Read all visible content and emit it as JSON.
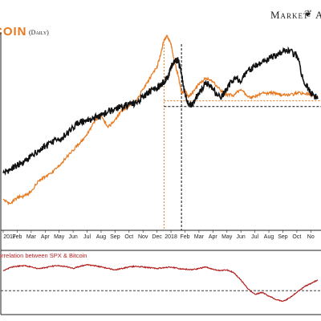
{
  "header": {
    "title_fragment": "COIN",
    "title_note": "(Daily)",
    "brand_text": "Market",
    "brand_icon": "dna-helix-icon",
    "brand_tail": "A"
  },
  "lower_panel": {
    "label": "orrelation between SPX & Bitcoin"
  },
  "colors": {
    "spx": "#111111",
    "bitcoin": "#e8781e",
    "correlation": "#b21f1f",
    "reference_line": "#222222"
  },
  "chart_data": [
    {
      "type": "line",
      "title": "",
      "x_tick_labels": [
        "2017",
        "Feb",
        "Mar",
        "Apr",
        "May",
        "Jun",
        "Jul",
        "Aug",
        "Sep",
        "Oct",
        "Nov",
        "Dec",
        "2018",
        "Feb",
        "Mar",
        "Apr",
        "May",
        "Jun",
        "Jul",
        "Aug",
        "Sep",
        "Oct",
        "No"
      ],
      "x": [
        0,
        0.5,
        1,
        1.5,
        2,
        2.5,
        3,
        3.5,
        4,
        4.5,
        5,
        5.5,
        6,
        6.5,
        7,
        7.5,
        8,
        8.5,
        9,
        9.5,
        10,
        10.5,
        11,
        11.25,
        11.5,
        11.75,
        12,
        12.25,
        12.5,
        12.75,
        13,
        13.25,
        13.5,
        14,
        14.5,
        15,
        15.5,
        16,
        16.5,
        17,
        17.5,
        18,
        18.5,
        19,
        19.5,
        20,
        20.5,
        21,
        21.5,
        22,
        22.5
      ],
      "series": [
        {
          "name": "",
          "color": "#111111",
          "values": [
            28,
            30,
            32,
            34,
            37,
            40,
            42,
            44,
            46,
            48,
            52,
            55,
            55,
            57,
            58,
            60,
            62,
            63,
            64,
            65,
            68,
            71,
            73,
            74,
            76,
            78,
            84,
            86,
            88,
            80,
            70,
            64,
            64,
            70,
            76,
            72,
            68,
            72,
            78,
            76,
            82,
            84,
            86,
            88,
            90,
            92,
            92,
            90,
            76,
            70,
            67
          ]
        },
        {
          "name": "",
          "color": "#e8781e",
          "values": [
            14,
            12,
            15,
            16,
            18,
            24,
            26,
            28,
            32,
            36,
            40,
            44,
            48,
            55,
            58,
            52,
            56,
            61,
            63,
            66,
            72,
            78,
            84,
            90,
            98,
            100,
            96,
            86,
            80,
            70,
            72,
            68,
            70,
            75,
            78,
            76,
            72,
            69,
            69,
            72,
            68,
            68,
            70,
            70,
            70,
            69,
            69,
            70,
            70,
            69,
            68
          ]
        }
      ],
      "reference_lines": [
        {
          "orientation": "vertical",
          "x": 11.5,
          "color": "#e8781e",
          "style": "dotted"
        },
        {
          "orientation": "vertical",
          "x": 12.75,
          "color": "#111111",
          "style": "dashed"
        },
        {
          "orientation": "horizontal",
          "y": 66,
          "color": "#e8781e",
          "style": "dotted"
        },
        {
          "orientation": "horizontal",
          "y": 63,
          "color": "#111111",
          "style": "dashed"
        }
      ],
      "ylim": [
        0,
        100
      ],
      "grid": false
    },
    {
      "type": "line",
      "title": "orrelation between SPX & Bitcoin",
      "x": [
        0,
        0.5,
        1,
        1.5,
        2,
        2.5,
        3,
        3.5,
        4,
        4.5,
        5,
        5.5,
        6,
        6.5,
        7,
        7.5,
        8,
        8.5,
        9,
        9.5,
        10,
        10.5,
        11,
        11.5,
        12,
        12.5,
        13,
        13.5,
        14,
        14.5,
        15,
        15.5,
        16,
        16.5,
        17,
        17.5,
        18,
        18.5,
        19,
        19.5,
        20,
        20.5,
        21,
        21.5,
        22,
        22.5
      ],
      "series": [
        {
          "name": "",
          "color": "#b21f1f",
          "values": [
            0.55,
            0.65,
            0.68,
            0.7,
            0.66,
            0.62,
            0.64,
            0.68,
            0.7,
            0.67,
            0.62,
            0.68,
            0.72,
            0.7,
            0.66,
            0.62,
            0.58,
            0.62,
            0.66,
            0.68,
            0.66,
            0.64,
            0.62,
            0.64,
            0.66,
            0.62,
            0.6,
            0.58,
            0.62,
            0.66,
            0.6,
            0.56,
            0.58,
            0.5,
            0.3,
            0.05,
            -0.1,
            -0.05,
            -0.15,
            -0.25,
            -0.3,
            -0.2,
            -0.05,
            0.1,
            0.2,
            0.3
          ]
        }
      ],
      "reference_lines": [
        {
          "orientation": "horizontal",
          "y": 0,
          "color": "#222222",
          "style": "dashed"
        }
      ],
      "ylim": [
        -0.4,
        0.9
      ],
      "grid": false
    }
  ]
}
